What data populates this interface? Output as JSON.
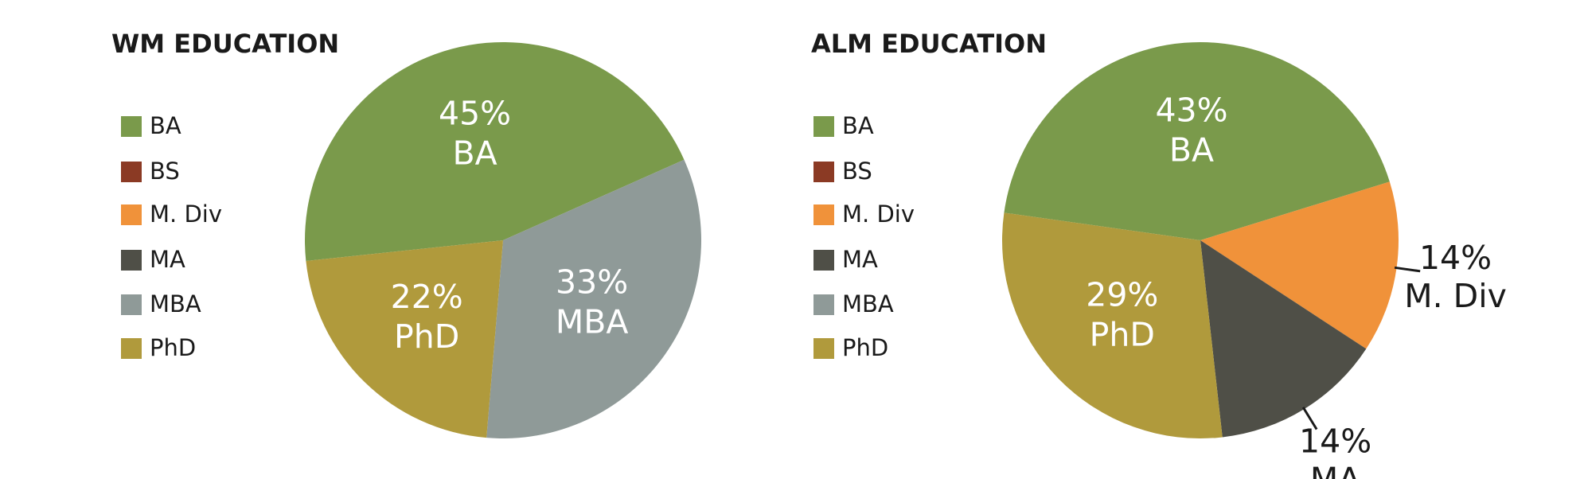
{
  "chart_data": [
    {
      "type": "pie",
      "title": "WM EDUCATION",
      "categories": [
        "BA",
        "BS",
        "M. Div",
        "MA",
        "MBA",
        "PhD"
      ],
      "values": [
        45,
        0,
        0,
        0,
        33,
        22
      ],
      "value_labels": [
        "45%",
        null,
        null,
        null,
        "33%",
        "22%"
      ],
      "colors": [
        "#7a9a4b",
        "#8b3a24",
        "#f0923a",
        "#4f4f47",
        "#8f9a98",
        "#b09a3c"
      ]
    },
    {
      "type": "pie",
      "title": "ALM EDUCATION",
      "categories": [
        "BA",
        "BS",
        "M. Div",
        "MA",
        "MBA",
        "PhD"
      ],
      "values": [
        43,
        0,
        14,
        14,
        0,
        29
      ],
      "value_labels": [
        "43%",
        null,
        "14%",
        "14%",
        null,
        "29%"
      ],
      "colors": [
        "#7a9a4b",
        "#8b3a24",
        "#f0923a",
        "#4f4f47",
        "#8f9a98",
        "#b09a3c"
      ]
    }
  ]
}
